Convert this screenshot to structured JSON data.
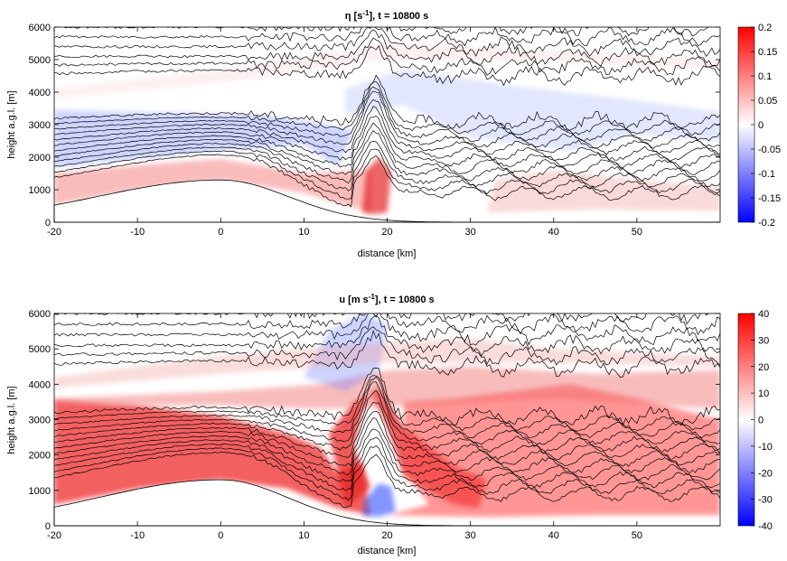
{
  "chart_data": [
    {
      "type": "heatmap",
      "variable": "η",
      "unit": "s",
      "unit_exponent": "-1",
      "time": "t = 10800 s",
      "xlabel": "distance [km]",
      "ylabel": "height a.g.l. [m]",
      "xlim": [
        -20,
        60
      ],
      "ylim": [
        0,
        6000
      ],
      "xticks": [
        -20,
        -10,
        0,
        10,
        20,
        30,
        40,
        50
      ],
      "yticks": [
        0,
        1000,
        2000,
        3000,
        4000,
        5000,
        6000
      ],
      "colorbar": {
        "range": [
          -0.2,
          0.2
        ],
        "ticks": [
          -0.2,
          -0.15,
          -0.1,
          -0.05,
          0,
          0.05,
          0.1,
          0.15,
          0.2
        ],
        "colormap": [
          "#0000ff",
          "#ffffff",
          "#ff0000"
        ]
      },
      "contour_color": "#000000",
      "fill_regions": [
        {
          "color": "#f04040",
          "strength": 0.35,
          "points": [
            [
              -20,
              550
            ],
            [
              -10,
              1000
            ],
            [
              0,
              1300
            ],
            [
              10,
              900
            ],
            [
              18,
              300
            ],
            [
              18,
              1600
            ],
            [
              10,
              1500
            ],
            [
              0,
              1950
            ],
            [
              -10,
              1750
            ],
            [
              -20,
              1500
            ]
          ]
        },
        {
          "color": "#e00000",
          "strength": 0.6,
          "points": [
            [
              17,
              300
            ],
            [
              18.5,
              250
            ],
            [
              20,
              300
            ],
            [
              20.5,
              1500
            ],
            [
              19,
              2000
            ],
            [
              17.5,
              1600
            ]
          ]
        },
        {
          "color": "#f08080",
          "strength": 0.3,
          "points": [
            [
              32,
              300
            ],
            [
              45,
              400
            ],
            [
              60,
              350
            ],
            [
              60,
              1100
            ],
            [
              50,
              1300
            ],
            [
              40,
              1600
            ],
            [
              33,
              1300
            ]
          ]
        },
        {
          "color": "#5a6fff",
          "strength": 0.3,
          "points": [
            [
              -20,
              1700
            ],
            [
              0,
              2200
            ],
            [
              10,
              2400
            ],
            [
              14,
              1700
            ],
            [
              16,
              2800
            ],
            [
              13,
              3000
            ],
            [
              5,
              3300
            ],
            [
              -20,
              3450
            ]
          ]
        },
        {
          "color": "#6f80ff",
          "strength": 0.2,
          "points": [
            [
              15,
              3300
            ],
            [
              22,
              3600
            ],
            [
              30,
              2600
            ],
            [
              42,
              2200
            ],
            [
              50,
              2700
            ],
            [
              60,
              2500
            ],
            [
              60,
              3400
            ],
            [
              48,
              3800
            ],
            [
              35,
              4200
            ],
            [
              22,
              4700
            ],
            [
              15,
              4100
            ]
          ]
        },
        {
          "color": "#f09a9a",
          "strength": 0.15,
          "points": [
            [
              -20,
              4100
            ],
            [
              0,
              4700
            ],
            [
              20,
              5500
            ],
            [
              40,
              5300
            ],
            [
              60,
              5000
            ],
            [
              60,
              4700
            ],
            [
              40,
              4900
            ],
            [
              20,
              5000
            ],
            [
              0,
              4300
            ],
            [
              -20,
              3800
            ]
          ]
        }
      ]
    },
    {
      "type": "heatmap",
      "variable": "u",
      "unit": "m s",
      "unit_exponent": "-1",
      "time": "t = 10800 s",
      "xlabel": "distance [km]",
      "ylabel": "height a.g.l. [m]",
      "xlim": [
        -20,
        60
      ],
      "ylim": [
        0,
        6000
      ],
      "xticks": [
        -20,
        -10,
        0,
        10,
        20,
        30,
        40,
        50
      ],
      "yticks": [
        0,
        1000,
        2000,
        3000,
        4000,
        5000,
        6000
      ],
      "colorbar": {
        "range": [
          -40,
          40
        ],
        "ticks": [
          -40,
          -30,
          -20,
          -10,
          0,
          10,
          20,
          30,
          40
        ],
        "colormap": [
          "#0000ff",
          "#ffffff",
          "#ff0000"
        ]
      },
      "contour_color": "#000000",
      "fill_regions": [
        {
          "color": "#ef3a3a",
          "strength": 0.8,
          "points": [
            [
              -20,
              600
            ],
            [
              -10,
              1050
            ],
            [
              0,
              1300
            ],
            [
              8,
              1050
            ],
            [
              14,
              500
            ],
            [
              18,
              300
            ],
            [
              17,
              1800
            ],
            [
              14,
              1500
            ],
            [
              12,
              2200
            ],
            [
              8,
              2600
            ],
            [
              0,
              3100
            ],
            [
              -10,
              3400
            ],
            [
              -20,
              3550
            ]
          ]
        },
        {
          "color": "#e82020",
          "strength": 0.75,
          "points": [
            [
              15,
              500
            ],
            [
              18,
              1100
            ],
            [
              16,
              2200
            ],
            [
              17,
              3200
            ],
            [
              18,
              3800
            ],
            [
              20,
              2800
            ],
            [
              22,
              1400
            ],
            [
              28,
              600
            ],
            [
              31,
              500
            ],
            [
              32,
              1300
            ],
            [
              28,
              1700
            ],
            [
              22,
              2800
            ],
            [
              19,
              3900
            ],
            [
              16,
              3500
            ],
            [
              13,
              2600
            ]
          ]
        },
        {
          "color": "#ff5050",
          "strength": 0.6,
          "points": [
            [
              20,
              300
            ],
            [
              32,
              250
            ],
            [
              45,
              300
            ],
            [
              60,
              300
            ],
            [
              60,
              3000
            ],
            [
              50,
              3600
            ],
            [
              42,
              4000
            ],
            [
              35,
              3800
            ],
            [
              28,
              3600
            ],
            [
              22,
              3500
            ],
            [
              22,
              1600
            ],
            [
              25,
              600
            ]
          ]
        },
        {
          "color": "#f06a6a",
          "strength": 0.45,
          "points": [
            [
              -20,
              3600
            ],
            [
              0,
              3800
            ],
            [
              12,
              4000
            ],
            [
              20,
              4400
            ],
            [
              30,
              4500
            ],
            [
              45,
              4300
            ],
            [
              60,
              4400
            ],
            [
              60,
              3300
            ],
            [
              40,
              3600
            ],
            [
              25,
              3400
            ],
            [
              12,
              3300
            ],
            [
              0,
              3400
            ],
            [
              -20,
              3400
            ]
          ]
        },
        {
          "color": "#3050ff",
          "strength": 0.6,
          "points": [
            [
              17,
              300
            ],
            [
              19,
              250
            ],
            [
              21,
              400
            ],
            [
              20.5,
              1100
            ],
            [
              19,
              1200
            ],
            [
              17.5,
              800
            ]
          ]
        },
        {
          "color": "#7080ff",
          "strength": 0.35,
          "points": [
            [
              10,
              4200
            ],
            [
              15,
              3800
            ],
            [
              19,
              4400
            ],
            [
              20,
              5700
            ],
            [
              17,
              6000
            ],
            [
              13,
              5500
            ]
          ]
        },
        {
          "color": "#f29a9a",
          "strength": 0.35,
          "points": [
            [
              -20,
              4200
            ],
            [
              0,
              4800
            ],
            [
              15,
              5100
            ],
            [
              30,
              5300
            ],
            [
              40,
              5000
            ],
            [
              60,
              4800
            ],
            [
              60,
              4500
            ],
            [
              40,
              4600
            ],
            [
              20,
              4600
            ],
            [
              0,
              4300
            ],
            [
              -20,
              3900
            ]
          ]
        }
      ]
    }
  ]
}
